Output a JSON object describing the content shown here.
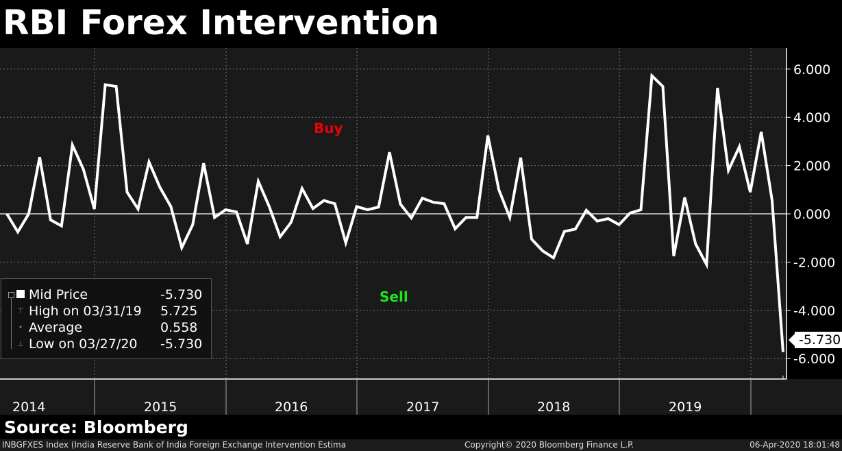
{
  "title": "RBI Forex Intervention",
  "source": "Source: Bloomberg",
  "footer": {
    "left": "INBGFXES Index (India Reserve Bank of India Foreign Exchange Intervention Estima",
    "center": "Copyright© 2020 Bloomberg Finance L.P.",
    "right": "06-Apr-2020 18:01:48"
  },
  "legend": {
    "rows": [
      {
        "label": "Mid Price",
        "value": "-5.730",
        "icon": "square-icon"
      },
      {
        "label": "High on 03/31/19",
        "value": "5.725",
        "icon": "high-marker-icon"
      },
      {
        "label": "Average",
        "value": "0.558",
        "icon": "average-marker-icon"
      },
      {
        "label": "Low on 03/27/20",
        "value": "-5.730",
        "icon": "low-marker-icon"
      }
    ]
  },
  "annotations": {
    "buy": "Buy",
    "sell": "Sell"
  },
  "colors": {
    "line": "#ffffff",
    "buy": "#e8000b",
    "sell": "#1ee81e",
    "background": "#1a1a1a"
  },
  "last_value_label": "-5.730",
  "chart_data": {
    "type": "line",
    "title": "RBI Forex Intervention",
    "x_ticks": [
      "2014",
      "2015",
      "2016",
      "2017",
      "2018",
      "2019"
    ],
    "y_ticks": [
      "6.000",
      "4.000",
      "2.000",
      "0.000",
      "-2.000",
      "-4.000",
      "-6.000"
    ],
    "ylim": [
      -6.9,
      6.9
    ],
    "y_axis_side": "right",
    "grid": true,
    "legend_placement": "bottom-left",
    "x": [
      "2014-04",
      "2014-05",
      "2014-06",
      "2014-07",
      "2014-08",
      "2014-09",
      "2014-10",
      "2014-11",
      "2014-12",
      "2015-01",
      "2015-02",
      "2015-03",
      "2015-04",
      "2015-05",
      "2015-06",
      "2015-07",
      "2015-08",
      "2015-09",
      "2015-10",
      "2015-11",
      "2015-12",
      "2016-01",
      "2016-02",
      "2016-03",
      "2016-04",
      "2016-05",
      "2016-06",
      "2016-07",
      "2016-08",
      "2016-09",
      "2016-10",
      "2016-11",
      "2016-12",
      "2017-01",
      "2017-02",
      "2017-03",
      "2017-04",
      "2017-05",
      "2017-06",
      "2017-07",
      "2017-08",
      "2017-09",
      "2017-10",
      "2017-11",
      "2017-12",
      "2018-01",
      "2018-02",
      "2018-03",
      "2018-04",
      "2018-05",
      "2018-06",
      "2018-07",
      "2018-08",
      "2018-09",
      "2018-10",
      "2018-11",
      "2018-12",
      "2019-01",
      "2019-02",
      "2019-03",
      "2019-04",
      "2019-05",
      "2019-06",
      "2019-07",
      "2019-08",
      "2019-09",
      "2019-10",
      "2019-11",
      "2019-12",
      "2020-01",
      "2020-02",
      "2020-03"
    ],
    "series": [
      {
        "name": "Mid Price",
        "values": [
          0.0,
          -0.75,
          0.0,
          2.35,
          -0.25,
          -0.5,
          2.85,
          1.85,
          0.2,
          5.35,
          5.28,
          0.9,
          0.2,
          2.15,
          1.1,
          0.3,
          -1.4,
          -0.45,
          2.1,
          -0.15,
          0.17,
          0.08,
          -1.25,
          1.35,
          0.3,
          -0.95,
          -0.35,
          1.05,
          0.22,
          0.55,
          0.42,
          -1.2,
          0.3,
          0.17,
          0.28,
          2.55,
          0.4,
          -0.17,
          0.65,
          0.48,
          0.42,
          -0.62,
          -0.15,
          -0.15,
          3.25,
          1.0,
          -0.15,
          2.33,
          -1.05,
          -1.53,
          -1.82,
          -0.73,
          -0.63,
          0.15,
          -0.3,
          -0.2,
          -0.45,
          0.03,
          0.17,
          5.725,
          5.28,
          -1.75,
          0.68,
          -1.25,
          -2.1,
          5.22,
          1.8,
          2.78,
          0.9,
          3.4,
          0.55,
          -5.73
        ]
      }
    ]
  }
}
